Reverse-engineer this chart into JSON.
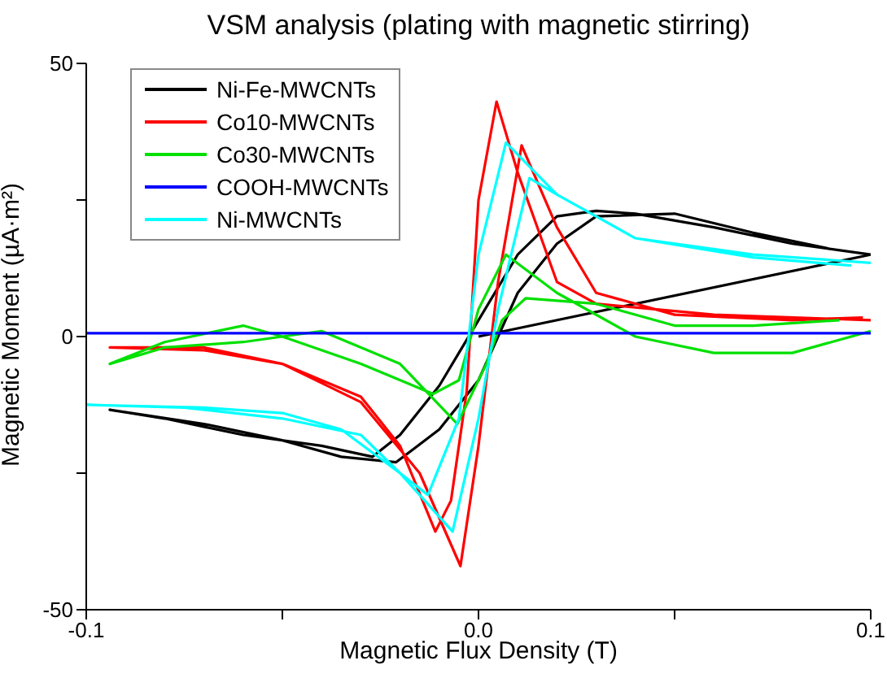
{
  "chart_data": {
    "type": "line",
    "title": "VSM analysis (plating with magnetic stirring)",
    "xlabel": "Magnetic Flux Density (T)",
    "ylabel": "Magnetic Moment (µA·m²)",
    "xlim": [
      -0.1,
      0.1
    ],
    "xticks": [
      -0.1,
      {
        "value": -0.05,
        "label": null
      },
      {
        "value": 0,
        "label": "0.0"
      },
      {
        "value": 0.05,
        "label": null
      },
      0.1
    ],
    "ylim": [
      -50,
      50
    ],
    "yticks": [
      -50,
      {
        "value": -25,
        "label": null
      },
      0,
      {
        "value": 25,
        "label": null
      },
      50
    ],
    "grid": false,
    "legend": "top left",
    "marker": "none",
    "line_style": "solid",
    "series": [
      {
        "name": "Ni-Fe-MWCNTs",
        "color": "#000000",
        "x": [
          0,
          0.1,
          0.08,
          0.06,
          0.04,
          0.03,
          0.02,
          0.01,
          0,
          -0.005,
          -0.01,
          -0.02,
          -0.027,
          -0.04,
          -0.06,
          -0.08,
          -0.094,
          -0.07,
          -0.05,
          -0.035,
          -0.021,
          -0.01,
          0,
          0.005,
          0.01,
          0.02,
          0.03,
          0.05,
          0.07,
          0.09,
          0.1
        ],
        "values": [
          0,
          15,
          17,
          20,
          22.5,
          23,
          22,
          15,
          3,
          -3,
          -9,
          -18,
          -22,
          -20,
          -18,
          -15,
          -13.4,
          -16,
          -19,
          -22,
          -23,
          -17,
          -8,
          0,
          8,
          17,
          22,
          22.5,
          19,
          16,
          15
        ]
      },
      {
        "name": "Co10-MWCNTs",
        "color": "#ff0000",
        "x": [
          0.1,
          0.06,
          0.03,
          0.02,
          0.01,
          0.0046,
          0,
          -0.003,
          -0.007,
          -0.011,
          -0.02,
          -0.03,
          -0.05,
          -0.07,
          -0.094,
          -0.07,
          -0.05,
          -0.03,
          -0.015,
          -0.0046,
          0,
          0.005,
          0.011,
          0.02,
          0.03,
          0.05,
          0.08,
          0.098
        ],
        "values": [
          3,
          4,
          6,
          10,
          30,
          43,
          25,
          -10,
          -30,
          -35.7,
          -20,
          -11,
          -5,
          -2,
          -2,
          -2.5,
          -5,
          -12,
          -25,
          -42,
          -20,
          10,
          35,
          20,
          8,
          4,
          3,
          3.5
        ]
      },
      {
        "name": "Co30-MWCNTs",
        "color": "#00e000",
        "x": [
          0.1,
          0.09,
          0.08,
          0.06,
          0.04,
          0.02,
          0.007,
          0,
          -0.005,
          -0.0116,
          -0.03,
          -0.05,
          -0.06,
          -0.08,
          -0.094,
          -0.08,
          -0.06,
          -0.04,
          -0.02,
          -0.0054,
          0.002,
          0.006,
          0.012,
          0.03,
          0.05,
          0.07,
          0.092
        ],
        "values": [
          1,
          -1,
          -3,
          -3,
          0,
          8,
          15,
          5,
          -8,
          -10.5,
          -5,
          0,
          2,
          -1,
          -5,
          -2,
          -1,
          1,
          -5,
          -16,
          -5,
          3,
          7,
          6,
          2,
          2,
          3
        ]
      },
      {
        "name": "COOH-MWCNTs",
        "color": "#0000ff",
        "x": [
          -0.1,
          0,
          0.1
        ],
        "values": [
          0.6,
          0.6,
          0.6
        ]
      },
      {
        "name": "Ni-MWCNTs",
        "color": "#00ffff",
        "x": [
          0.1,
          0.07,
          0.04,
          0.02,
          0.007,
          0,
          -0.005,
          -0.0129,
          -0.02,
          -0.03,
          -0.05,
          -0.075,
          -0.1,
          -0.07,
          -0.05,
          -0.035,
          -0.02,
          -0.0066,
          0,
          0.005,
          0.013,
          0.02,
          0.04,
          0.07,
          0.095
        ],
        "values": [
          13.5,
          15,
          18,
          26,
          35.5,
          15,
          -15,
          -29,
          -25,
          -18,
          -15,
          -13,
          -12.5,
          -13,
          -14,
          -17,
          -25,
          -35.7,
          -15,
          5,
          29,
          26,
          18,
          14.5,
          13
        ]
      }
    ]
  }
}
